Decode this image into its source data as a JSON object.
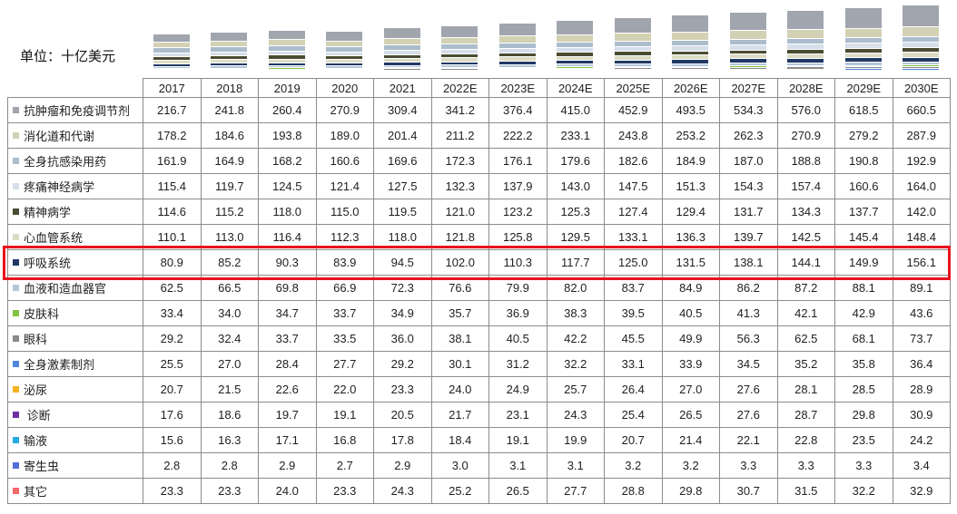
{
  "unit_label": "单位：十亿美元",
  "colors": {
    "background": "#ffffff",
    "grid_border": "#8c8c8c",
    "text": "#1f1f1f",
    "highlight_red": "#e8131d",
    "bar_separator": "#ffffff"
  },
  "highlight": {
    "series": "呼吸系统",
    "color": "#e8131d"
  },
  "chart_data": {
    "type": "bar",
    "stacked": true,
    "title": "",
    "unit": "十亿美元",
    "unit_caption": "单位：十亿美元",
    "legend_position": "table-row-labels-left",
    "grid": false,
    "categories": [
      "2017",
      "2018",
      "2019",
      "2020",
      "2021",
      "2022E",
      "2023E",
      "2024E",
      "2025E",
      "2026E",
      "2027E",
      "2028E",
      "2029E",
      "2030E"
    ],
    "series": [
      {
        "name": "抗肿瘤和免疫调节剂",
        "color": "#a0a5ae",
        "values": [
          216.7,
          241.8,
          260.4,
          270.9,
          309.4,
          341.2,
          376.4,
          415.0,
          452.9,
          493.5,
          534.3,
          576.0,
          618.5,
          660.5
        ]
      },
      {
        "name": "消化道和代谢",
        "color": "#d3d1b4",
        "values": [
          178.2,
          184.6,
          193.8,
          189.0,
          201.4,
          211.2,
          222.2,
          233.1,
          243.8,
          253.2,
          262.3,
          270.9,
          279.2,
          287.9
        ]
      },
      {
        "name": "全身抗感染用药",
        "color": "#abbdcc",
        "values": [
          161.9,
          164.9,
          168.2,
          160.6,
          169.6,
          172.3,
          176.1,
          179.6,
          182.6,
          184.9,
          187.0,
          188.8,
          190.8,
          192.9
        ]
      },
      {
        "name": "疼痛神经病学",
        "color": "#d6dee9",
        "values": [
          115.4,
          119.7,
          124.5,
          121.4,
          127.5,
          132.3,
          137.9,
          143.0,
          147.5,
          151.3,
          154.3,
          157.4,
          160.6,
          164.0
        ]
      },
      {
        "name": "精神病学",
        "color": "#4a4b31",
        "values": [
          114.6,
          115.2,
          118.0,
          115.0,
          119.5,
          121.0,
          123.2,
          125.3,
          127.4,
          129.4,
          131.7,
          134.3,
          137.7,
          142.0
        ]
      },
      {
        "name": "心血管系统",
        "color": "#dcdcc6",
        "values": [
          110.1,
          113.0,
          116.4,
          112.3,
          118.0,
          121.8,
          125.8,
          129.5,
          133.1,
          136.3,
          139.7,
          142.5,
          145.4,
          148.4
        ]
      },
      {
        "name": "呼吸系统",
        "color": "#203864",
        "values": [
          80.9,
          85.2,
          90.3,
          83.9,
          94.5,
          102.0,
          110.3,
          117.7,
          125.0,
          131.5,
          138.1,
          144.1,
          149.9,
          156.1
        ]
      },
      {
        "name": "血液和造血器官",
        "color": "#b4c7da",
        "values": [
          62.5,
          66.5,
          69.8,
          66.9,
          72.3,
          76.6,
          79.9,
          82.0,
          83.7,
          84.9,
          86.2,
          87.2,
          88.1,
          89.1
        ]
      },
      {
        "name": "皮肤科",
        "color": "#82c341",
        "values": [
          33.4,
          34.0,
          34.7,
          33.7,
          34.9,
          35.7,
          36.9,
          38.3,
          39.5,
          40.5,
          41.3,
          42.1,
          42.9,
          43.6
        ]
      },
      {
        "name": "眼科",
        "color": "#898989",
        "values": [
          29.2,
          32.4,
          33.7,
          33.5,
          36.0,
          38.1,
          40.5,
          42.2,
          45.5,
          49.9,
          56.3,
          62.5,
          68.1,
          73.7
        ]
      },
      {
        "name": "全身激素制剂",
        "color": "#4e86e0",
        "values": [
          25.5,
          27.0,
          28.4,
          27.7,
          29.2,
          30.1,
          31.2,
          32.2,
          33.1,
          33.9,
          34.5,
          35.2,
          35.8,
          36.4
        ]
      },
      {
        "name": "泌尿",
        "color": "#f5b324",
        "values": [
          20.7,
          21.5,
          22.6,
          22.0,
          23.3,
          24.0,
          24.9,
          25.7,
          26.4,
          27.0,
          27.6,
          28.1,
          28.5,
          28.9
        ]
      },
      {
        "name": " 诊断",
        "color": "#7030a0",
        "values": [
          17.6,
          18.6,
          19.7,
          19.1,
          20.5,
          21.7,
          23.1,
          24.3,
          25.4,
          26.5,
          27.6,
          28.7,
          29.8,
          30.9
        ]
      },
      {
        "name": "输液",
        "color": "#27aae1",
        "values": [
          15.6,
          16.3,
          17.1,
          16.8,
          17.8,
          18.4,
          19.1,
          19.9,
          20.7,
          21.4,
          22.1,
          22.8,
          23.5,
          24.2
        ]
      },
      {
        "name": "寄生虫",
        "color": "#5070d8",
        "values": [
          2.8,
          2.8,
          2.9,
          2.7,
          2.9,
          3.0,
          3.1,
          3.1,
          3.2,
          3.2,
          3.3,
          3.3,
          3.3,
          3.4
        ]
      },
      {
        "name": "其它",
        "color": "#f4696b",
        "values": [
          23.3,
          23.3,
          24.0,
          23.3,
          24.3,
          25.2,
          26.5,
          27.7,
          28.8,
          29.8,
          30.7,
          31.5,
          32.2,
          32.9
        ]
      }
    ]
  }
}
